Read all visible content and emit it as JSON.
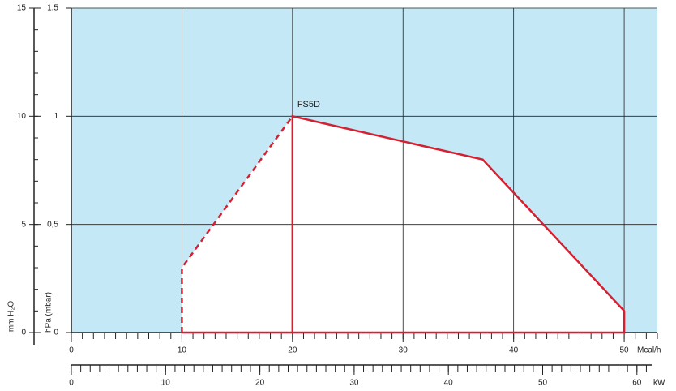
{
  "chart_data": {
    "type": "line",
    "label": "FS5D",
    "label_color": "#d42030",
    "plot_color": "#c5e8f7",
    "grid": true,
    "x_label": "Mcal/h",
    "xlim": [
      0,
      53
    ],
    "xticks": [
      0,
      10,
      20,
      30,
      40,
      50
    ],
    "x_minor_step": 1,
    "ylabel": "hPa (mbar)",
    "ylim": [
      0,
      1.5
    ],
    "yticks": [
      0,
      {
        "value": 0.5,
        "label": "0,5"
      },
      1,
      {
        "value": 1.5,
        "label": "1,5"
      }
    ],
    "y2label": "mm H₂O",
    "y2lim": [
      0,
      15
    ],
    "y2ticks": [
      0,
      5,
      10,
      15
    ],
    "y2_minor_step": 1,
    "kw_label": "kW",
    "kwlim": [
      0,
      61.6
    ],
    "kwticks": [
      0,
      10,
      20,
      30,
      40,
      50,
      60
    ],
    "kw_minor_step": 1,
    "series": [
      {
        "style": "dashed",
        "color": "#d42030",
        "x": [
          10,
          10,
          20
        ],
        "values": [
          0,
          0.3,
          1
        ]
      },
      {
        "style": "solid",
        "color": "#d42030",
        "x": [
          20,
          20,
          37.2,
          50,
          50,
          10
        ],
        "values": [
          0,
          1,
          0.8,
          0.1,
          0,
          0
        ]
      }
    ]
  }
}
